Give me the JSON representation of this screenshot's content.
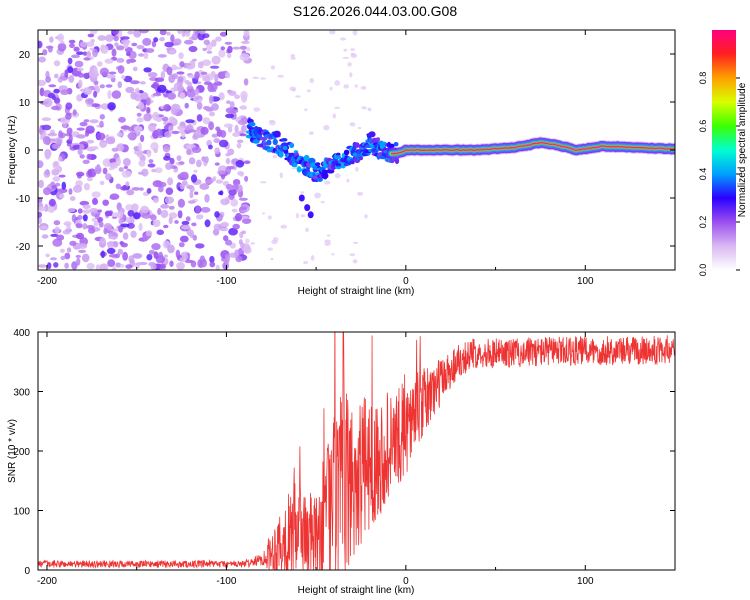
{
  "title": "S126.2026.044.03.00.G08",
  "chart_data": [
    {
      "type": "heatmap",
      "xlabel": "Height of straight line (km)",
      "ylabel": "Frequency (Hz)",
      "xlim": [
        -205,
        150
      ],
      "ylim": [
        -25,
        25
      ],
      "xticks": [
        -200,
        -100,
        0,
        100
      ],
      "yticks": [
        -20,
        -10,
        0,
        10,
        20
      ],
      "colorbar": {
        "label": "Normalized spectral amplitude",
        "range": [
          0.0,
          1.0
        ],
        "ticks": [
          "0.0",
          "0.2",
          "0.4",
          "0.6",
          "0.8"
        ],
        "colors": [
          "#ffffff",
          "#d9b8f2",
          "#9b4ff0",
          "#2a00ff",
          "#00a0ff",
          "#00ffd0",
          "#3cff00",
          "#d8ff00",
          "#ffa000",
          "#ff2020",
          "#ff0080"
        ]
      },
      "noise_region_x": [
        -205,
        -88
      ],
      "trace": [
        {
          "x": -88,
          "f": 4.5
        },
        {
          "x": -80,
          "f": 2.0
        },
        {
          "x": -72,
          "f": 1.5
        },
        {
          "x": -65,
          "f": -0.5
        },
        {
          "x": -58,
          "f": -3.0
        },
        {
          "x": -50,
          "f": -5.0
        },
        {
          "x": -42,
          "f": -3.5
        },
        {
          "x": -35,
          "f": -1.5
        },
        {
          "x": -28,
          "f": -0.5
        },
        {
          "x": -20,
          "f": 1.5
        },
        {
          "x": -12,
          "f": -0.5
        },
        {
          "x": -5,
          "f": -0.8
        },
        {
          "x": 0,
          "f": 0.0
        },
        {
          "x": 20,
          "f": 0.0
        },
        {
          "x": 40,
          "f": 0.0
        },
        {
          "x": 60,
          "f": 0.5
        },
        {
          "x": 75,
          "f": 1.5
        },
        {
          "x": 85,
          "f": 1.0
        },
        {
          "x": 95,
          "f": 0.0
        },
        {
          "x": 110,
          "f": 0.8
        },
        {
          "x": 130,
          "f": 0.5
        },
        {
          "x": 150,
          "f": 0.2
        }
      ],
      "branch": [
        {
          "x": -58,
          "f": -10.0
        },
        {
          "x": -55,
          "f": -12.0
        },
        {
          "x": -53,
          "f": -13.5
        }
      ]
    },
    {
      "type": "line",
      "xlabel": "Height of straight line (km)",
      "ylabel": "SNR (10 * v/v)",
      "xlim": [
        -205,
        150
      ],
      "ylim": [
        0,
        400
      ],
      "xticks": [
        -200,
        -100,
        0,
        100
      ],
      "yticks": [
        0,
        100,
        200,
        300,
        400
      ],
      "color": "#ee3333",
      "series": [
        {
          "name": "SNR",
          "points": [
            {
              "x": -205,
              "mean": 10,
              "noise": 6
            },
            {
              "x": -90,
              "mean": 10,
              "noise": 6
            },
            {
              "x": -80,
              "mean": 18,
              "noise": 10
            },
            {
              "x": -70,
              "mean": 45,
              "noise": 60
            },
            {
              "x": -60,
              "mean": 70,
              "noise": 90
            },
            {
              "x": -50,
              "mean": 50,
              "noise": 70
            },
            {
              "x": -40,
              "mean": 110,
              "noise": 180
            },
            {
              "x": -30,
              "mean": 150,
              "noise": 150
            },
            {
              "x": -20,
              "mean": 180,
              "noise": 110
            },
            {
              "x": -10,
              "mean": 200,
              "noise": 90
            },
            {
              "x": 0,
              "mean": 240,
              "noise": 80
            },
            {
              "x": 10,
              "mean": 280,
              "noise": 60
            },
            {
              "x": 20,
              "mean": 320,
              "noise": 40
            },
            {
              "x": 30,
              "mean": 355,
              "noise": 30
            },
            {
              "x": 40,
              "mean": 365,
              "noise": 25
            },
            {
              "x": 60,
              "mean": 365,
              "noise": 25
            },
            {
              "x": 80,
              "mean": 368,
              "noise": 25
            },
            {
              "x": 100,
              "mean": 368,
              "noise": 25
            },
            {
              "x": 120,
              "mean": 368,
              "noise": 25
            },
            {
              "x": 150,
              "mean": 370,
              "noise": 25
            }
          ]
        }
      ]
    }
  ]
}
